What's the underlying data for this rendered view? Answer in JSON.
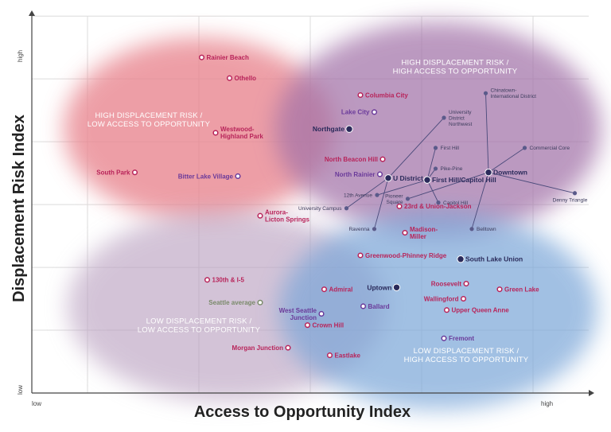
{
  "chart_data": {
    "type": "scatter",
    "title": "",
    "xlabel": "Access to Opportunity Index",
    "ylabel": "Displacement Risk Index",
    "x_ticks": {
      "low": "low",
      "high": "high"
    },
    "y_ticks": {
      "low": "low",
      "high": "high"
    },
    "xlim": [
      0,
      10
    ],
    "ylim": [
      0,
      10
    ],
    "grid": true,
    "colors": {
      "high_risk_low_access": "#e8848e",
      "high_risk_high_access": "#a272a8",
      "low_risk_low_access": "#b9a0c0",
      "low_risk_high_access": "#7aa6d8",
      "marker_red": "#b8245a",
      "marker_purple": "#6a3a9a",
      "marker_dark": "#2a2a5a",
      "marker_gray": "#7a8a6a"
    },
    "quadrants": [
      {
        "lines": [
          "HIGH DISPLACEMENT RISK /",
          "LOW ACCESS TO OPPORTUNITY"
        ]
      },
      {
        "lines": [
          "HIGH DISPLACEMENT RISK /",
          "HIGH ACCESS TO OPPORTUNITY"
        ]
      },
      {
        "lines": [
          "LOW DISPLACEMENT RISK /",
          "LOW ACCESS TO OPPORTUNITY"
        ]
      },
      {
        "lines": [
          "LOW DISPLACEMENT RISK /",
          "HIGH ACCESS TO OPPORTUNITY"
        ]
      }
    ],
    "points": [
      {
        "name": "Rainier Beach",
        "x": 3.05,
        "y": 8.9,
        "type": "ring",
        "color": "red",
        "side": "right"
      },
      {
        "name": "Othello",
        "x": 3.55,
        "y": 8.35,
        "type": "ring",
        "color": "red",
        "side": "right"
      },
      {
        "name": "Westwood-\nHighland Park",
        "x": 3.3,
        "y": 6.9,
        "type": "ring",
        "color": "red",
        "side": "right"
      },
      {
        "name": "South Park",
        "x": 1.85,
        "y": 5.85,
        "type": "ring",
        "color": "red",
        "side": "left"
      },
      {
        "name": "Bitter Lake Village",
        "x": 3.7,
        "y": 5.75,
        "type": "ring",
        "color": "purple",
        "side": "left"
      },
      {
        "name": "Aurora-\nLicton Springs",
        "x": 4.1,
        "y": 4.7,
        "type": "ring",
        "color": "red",
        "side": "right"
      },
      {
        "name": "Columbia City",
        "x": 5.9,
        "y": 7.9,
        "type": "ring",
        "color": "red",
        "side": "right"
      },
      {
        "name": "Lake City",
        "x": 6.15,
        "y": 7.45,
        "type": "ring",
        "color": "purple",
        "side": "left"
      },
      {
        "name": "Northgate",
        "x": 5.7,
        "y": 7.0,
        "type": "dot",
        "color": "dark",
        "side": "left"
      },
      {
        "name": "North Beacon Hill",
        "x": 6.3,
        "y": 6.2,
        "type": "ring",
        "color": "red",
        "side": "left"
      },
      {
        "name": "North Rainier",
        "x": 6.25,
        "y": 5.8,
        "type": "ring",
        "color": "purple",
        "side": "left"
      },
      {
        "name": "U District",
        "x": 6.4,
        "y": 5.7,
        "type": "dot",
        "color": "dark",
        "side": "right"
      },
      {
        "name": "First Hill/Capitol Hill",
        "x": 7.1,
        "y": 5.65,
        "type": "dot",
        "color": "dark",
        "side": "right"
      },
      {
        "name": "Downtown",
        "x": 8.2,
        "y": 5.85,
        "type": "dot",
        "color": "dark",
        "side": "right"
      },
      {
        "name": "23rd & Union-Jackson",
        "x": 6.6,
        "y": 4.95,
        "type": "ring",
        "color": "red",
        "side": "right"
      },
      {
        "name": "Madison-\nMiller",
        "x": 6.7,
        "y": 4.25,
        "type": "ring",
        "color": "red",
        "side": "right"
      },
      {
        "name": "Greenwood-Phinney Ridge",
        "x": 5.9,
        "y": 3.65,
        "type": "ring",
        "color": "red",
        "side": "right"
      },
      {
        "name": "South Lake Union",
        "x": 7.7,
        "y": 3.55,
        "type": "dot",
        "color": "dark",
        "side": "right"
      },
      {
        "name": "130th & I-5",
        "x": 3.15,
        "y": 3.0,
        "type": "ring",
        "color": "red",
        "side": "right"
      },
      {
        "name": "Admiral",
        "x": 5.25,
        "y": 2.75,
        "type": "ring",
        "color": "red",
        "side": "right"
      },
      {
        "name": "Uptown",
        "x": 6.55,
        "y": 2.8,
        "type": "dot",
        "color": "dark",
        "side": "left"
      },
      {
        "name": "Roosevelt",
        "x": 7.8,
        "y": 2.9,
        "type": "ring",
        "color": "red",
        "side": "left"
      },
      {
        "name": "Green Lake",
        "x": 8.4,
        "y": 2.75,
        "type": "ring",
        "color": "red",
        "side": "right"
      },
      {
        "name": "Wallingford",
        "x": 7.75,
        "y": 2.5,
        "type": "ring",
        "color": "red",
        "side": "left"
      },
      {
        "name": "Seattle average",
        "x": 4.1,
        "y": 2.4,
        "type": "ring",
        "color": "gray",
        "side": "left"
      },
      {
        "name": "West Seattle\nJunction",
        "x": 5.2,
        "y": 2.1,
        "type": "ring",
        "color": "purple",
        "side": "left"
      },
      {
        "name": "Ballard",
        "x": 5.95,
        "y": 2.3,
        "type": "ring",
        "color": "purple",
        "side": "right"
      },
      {
        "name": "Upper Queen Anne",
        "x": 7.45,
        "y": 2.2,
        "type": "ring",
        "color": "red",
        "side": "right"
      },
      {
        "name": "Crown Hill",
        "x": 4.95,
        "y": 1.8,
        "type": "ring",
        "color": "red",
        "side": "right"
      },
      {
        "name": "Fremont",
        "x": 7.4,
        "y": 1.45,
        "type": "ring",
        "color": "purple",
        "side": "right"
      },
      {
        "name": "Morgan Junction",
        "x": 4.6,
        "y": 1.2,
        "type": "ring",
        "color": "red",
        "side": "left"
      },
      {
        "name": "Eastlake",
        "x": 5.35,
        "y": 1.0,
        "type": "ring",
        "color": "red",
        "side": "right"
      }
    ],
    "sub_points": [
      {
        "name": "Chinatown-\nInternational District",
        "x": 8.15,
        "y": 7.95,
        "side": "right",
        "anchor": "Downtown"
      },
      {
        "name": "University\nDistrict\nNorthwest",
        "x": 7.4,
        "y": 7.3,
        "side": "right",
        "anchor": "U District"
      },
      {
        "name": "First Hill",
        "x": 7.25,
        "y": 6.5,
        "side": "right",
        "anchor": "First Hill/Capitol Hill"
      },
      {
        "name": "Commercial Core",
        "x": 8.85,
        "y": 6.5,
        "side": "right",
        "anchor": "Downtown"
      },
      {
        "name": "Pike-Pine",
        "x": 7.25,
        "y": 5.95,
        "side": "right",
        "anchor": "First Hill/Capitol Hill"
      },
      {
        "name": "12th Avenue",
        "x": 6.2,
        "y": 5.25,
        "side": "left",
        "anchor": "First Hill/Capitol Hill"
      },
      {
        "name": "Pioneer\nSquare",
        "x": 6.75,
        "y": 5.15,
        "side": "left",
        "anchor": "Downtown"
      },
      {
        "name": "Capitol Hill",
        "x": 7.3,
        "y": 5.05,
        "side": "right",
        "anchor": "First Hill/Capitol Hill"
      },
      {
        "name": "Denny Triangle",
        "x": 9.75,
        "y": 5.3,
        "side": "below",
        "anchor": "Downtown"
      },
      {
        "name": "University Campus",
        "x": 5.65,
        "y": 4.9,
        "side": "left",
        "anchor": "U District"
      },
      {
        "name": "Ravenna",
        "x": 6.15,
        "y": 4.35,
        "side": "left",
        "anchor": "U District"
      },
      {
        "name": "Belltown",
        "x": 7.9,
        "y": 4.35,
        "side": "right",
        "anchor": "Downtown"
      }
    ]
  }
}
